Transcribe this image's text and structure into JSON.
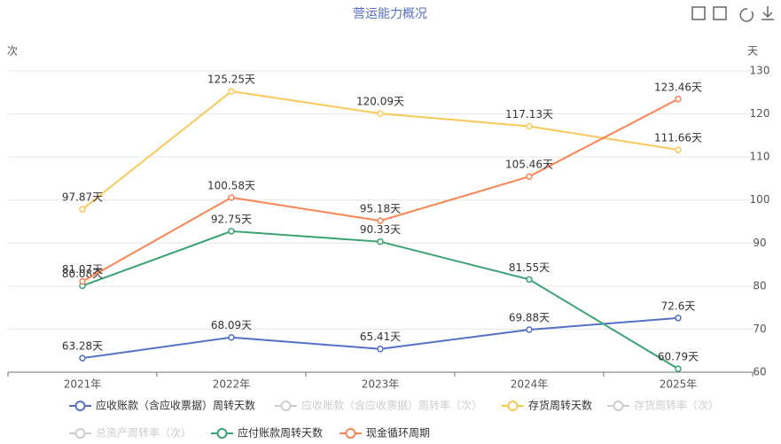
{
  "chart_data": {
    "type": "line",
    "title": "营运能力概况",
    "y_left_label": "次",
    "y2_label": "天",
    "categories": [
      "2021年",
      "2022年",
      "2023年",
      "2024年",
      "2025年"
    ],
    "y2lim": [
      60,
      130
    ],
    "y2ticks": [
      60,
      70,
      80,
      90,
      100,
      110,
      120,
      130
    ],
    "grid": true,
    "series": [
      {
        "name": "应收账款（含应收票据）周转天数",
        "color": "#5470c6",
        "axis": "y2",
        "values": [
          63.28,
          68.09,
          65.41,
          69.88,
          72.6
        ],
        "value_labels": [
          "63.28天",
          "68.09天",
          "65.41天",
          "69.88天",
          "72.6天"
        ]
      },
      {
        "name": "应收账款（含应收票据）周转率（次）",
        "color": "#cccccc",
        "hidden": true
      },
      {
        "name": "存货周转天数",
        "color": "#fac858",
        "axis": "y2",
        "values": [
          97.87,
          125.25,
          120.09,
          117.13,
          111.66
        ],
        "value_labels": [
          "97.87天",
          "125.25天",
          "120.09天",
          "117.13天",
          "111.66天"
        ]
      },
      {
        "name": "存货周转率（次）",
        "color": "#cccccc",
        "hidden": true
      },
      {
        "name": "总资产周转率（次）",
        "color": "#cccccc",
        "hidden": true
      },
      {
        "name": "应付账款周转天数",
        "color": "#3ba272",
        "axis": "y2",
        "values": [
          80.08,
          92.75,
          90.33,
          81.55,
          60.79
        ],
        "value_labels": [
          "80.08天",
          "92.75天",
          "90.33天",
          "81.55天",
          "60.79天"
        ]
      },
      {
        "name": "现金循环周期",
        "color": "#fc8452",
        "axis": "y2",
        "values": [
          81.07,
          100.58,
          95.18,
          105.46,
          123.46
        ],
        "value_labels": [
          "81.07天",
          "100.58天",
          "95.18天",
          "105.46天",
          "123.46天"
        ]
      }
    ]
  }
}
